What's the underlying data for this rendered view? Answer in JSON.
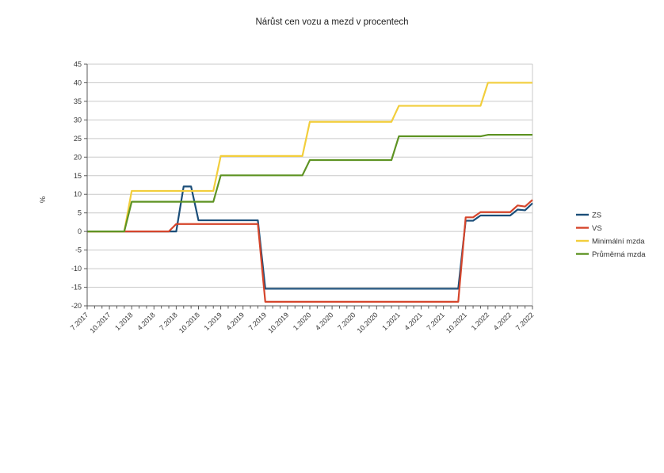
{
  "chart_data": {
    "type": "line",
    "title": "Nárůst cen vozu a mezd v procentech",
    "ylabel": "%",
    "ylim": [
      -20,
      45
    ],
    "ytick_step": 5,
    "grid": "horizontal",
    "legend_position": "right",
    "n_points": 61,
    "x_label_every": 3,
    "x_labels": [
      "7.2017",
      "10.2017",
      "1.2018",
      "4.2018",
      "7.2018",
      "10.2018",
      "1.2019",
      "4.2019",
      "7.2019",
      "10.2019",
      "1.2020",
      "4.2020",
      "7.2020",
      "10.2020",
      "1.2021",
      "4.2021",
      "7.2021",
      "10.2021",
      "1.2022",
      "4.2022",
      "7.2022"
    ],
    "series": [
      {
        "name": "ZS",
        "color": "#1B4E79",
        "values": [
          0,
          0,
          0,
          0,
          0,
          0,
          0,
          0,
          0,
          0,
          0,
          0,
          0,
          12.1,
          12.1,
          3,
          3,
          3,
          3,
          3,
          3,
          3,
          3,
          3,
          -15.4,
          -15.4,
          -15.4,
          -15.4,
          -15.4,
          -15.4,
          -15.4,
          -15.4,
          -15.4,
          -15.4,
          -15.4,
          -15.4,
          -15.4,
          -15.4,
          -15.4,
          -15.4,
          -15.4,
          -15.4,
          -15.4,
          -15.4,
          -15.4,
          -15.4,
          -15.4,
          -15.4,
          -15.4,
          -15.4,
          -15.4,
          2.9,
          2.9,
          4.3,
          4.3,
          4.3,
          4.3,
          4.3,
          5.9,
          5.7,
          7.6
        ]
      },
      {
        "name": "VS",
        "color": "#D5452B",
        "values": [
          0,
          0,
          0,
          0,
          0,
          0,
          0,
          0,
          0,
          0,
          0,
          0,
          2,
          2,
          2,
          2,
          2,
          2,
          2,
          2,
          2,
          2,
          2,
          2,
          -18.9,
          -18.9,
          -18.9,
          -18.9,
          -18.9,
          -18.9,
          -18.9,
          -18.9,
          -18.9,
          -18.9,
          -18.9,
          -18.9,
          -18.9,
          -18.9,
          -18.9,
          -18.9,
          -18.9,
          -18.9,
          -18.9,
          -18.9,
          -18.9,
          -18.9,
          -18.9,
          -18.9,
          -18.9,
          -18.9,
          -18.9,
          3.8,
          3.8,
          5.2,
          5.2,
          5.2,
          5.2,
          5.2,
          7,
          6.7,
          8.5
        ]
      },
      {
        "name": "Minimální mzda",
        "color": "#F2CE3C",
        "values": [
          0,
          0,
          0,
          0,
          0,
          0,
          10.9,
          10.9,
          10.9,
          10.9,
          10.9,
          10.9,
          10.9,
          10.9,
          10.9,
          10.9,
          10.9,
          10.9,
          20.3,
          20.3,
          20.3,
          20.3,
          20.3,
          20.3,
          20.3,
          20.3,
          20.3,
          20.3,
          20.3,
          20.3,
          29.5,
          29.5,
          29.5,
          29.5,
          29.5,
          29.5,
          29.5,
          29.5,
          29.5,
          29.5,
          29.5,
          29.5,
          33.8,
          33.8,
          33.8,
          33.8,
          33.8,
          33.8,
          33.8,
          33.8,
          33.8,
          33.8,
          33.8,
          33.8,
          40,
          40,
          40,
          40,
          40,
          40,
          40
        ]
      },
      {
        "name": "Průměrná mzda",
        "color": "#5E9323",
        "values": [
          0,
          0,
          0,
          0,
          0,
          0,
          8,
          8,
          8,
          8,
          8,
          8,
          8,
          8,
          8,
          8,
          8,
          8,
          15.1,
          15.1,
          15.1,
          15.1,
          15.1,
          15.1,
          15.1,
          15.1,
          15.1,
          15.1,
          15.1,
          15.1,
          19.2,
          19.2,
          19.2,
          19.2,
          19.2,
          19.2,
          19.2,
          19.2,
          19.2,
          19.2,
          19.2,
          19.2,
          25.6,
          25.6,
          25.6,
          25.6,
          25.6,
          25.6,
          25.6,
          25.6,
          25.6,
          25.6,
          25.6,
          25.6,
          26,
          26,
          26,
          26,
          26,
          26,
          26
        ]
      }
    ]
  },
  "colors": {
    "background": "#ffffff",
    "grid": "#c9c9c9",
    "axis": "#5a5a5a",
    "text": "#333333"
  }
}
